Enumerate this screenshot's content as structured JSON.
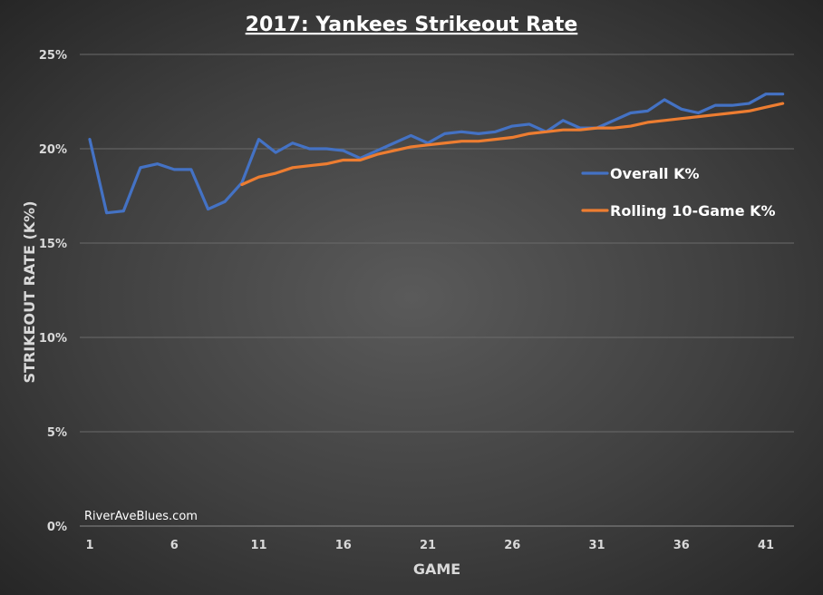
{
  "chart_data": {
    "type": "line",
    "title": "2017: Yankees Strikeout Rate",
    "xlabel": "GAME",
    "ylabel": "STRIKEOUT RATE (K%)",
    "ylim": [
      0,
      25
    ],
    "yticks": [
      "0%",
      "5%",
      "10%",
      "15%",
      "20%",
      "25%"
    ],
    "xticks": [
      "1",
      "6",
      "11",
      "16",
      "21",
      "26",
      "31",
      "36",
      "41"
    ],
    "grid": true,
    "legend_position": "right",
    "watermark": "RiverAveBlues.com",
    "series": [
      {
        "name": "Overall K%",
        "color": "#4472c4",
        "x": [
          1,
          2,
          3,
          4,
          5,
          6,
          7,
          8,
          9,
          10,
          11,
          12,
          13,
          14,
          15,
          16,
          17,
          18,
          19,
          20,
          21,
          22,
          23,
          24,
          25,
          26,
          27,
          28,
          29,
          30,
          31,
          32,
          33,
          34,
          35,
          36,
          37,
          38,
          39,
          40,
          41,
          42
        ],
        "values": [
          20.5,
          16.6,
          16.7,
          19.0,
          19.2,
          18.9,
          18.9,
          16.8,
          17.2,
          18.2,
          20.5,
          19.8,
          20.3,
          20.0,
          20.0,
          19.9,
          19.5,
          19.9,
          20.3,
          20.7,
          20.3,
          20.8,
          20.9,
          20.8,
          20.9,
          21.2,
          21.3,
          20.9,
          21.5,
          21.1,
          21.1,
          21.5,
          21.9,
          22.0,
          22.6,
          22.1,
          21.9,
          22.3,
          22.3,
          22.4,
          22.9,
          22.9
        ]
      },
      {
        "name": "Rolling 10-Game K%",
        "color": "#ed7d31",
        "x": [
          10,
          11,
          12,
          13,
          14,
          15,
          16,
          17,
          18,
          19,
          20,
          21,
          22,
          23,
          24,
          25,
          26,
          27,
          28,
          29,
          30,
          31,
          32,
          33,
          34,
          35,
          36,
          37,
          38,
          39,
          40,
          41,
          42
        ],
        "values": [
          18.1,
          18.5,
          18.7,
          19.0,
          19.1,
          19.2,
          19.4,
          19.4,
          19.7,
          19.9,
          20.1,
          20.2,
          20.3,
          20.4,
          20.4,
          20.5,
          20.6,
          20.8,
          20.9,
          21.0,
          21.0,
          21.1,
          21.1,
          21.2,
          21.4,
          21.5,
          21.6,
          21.7,
          21.8,
          21.9,
          22.0,
          22.2,
          22.4
        ]
      }
    ]
  }
}
